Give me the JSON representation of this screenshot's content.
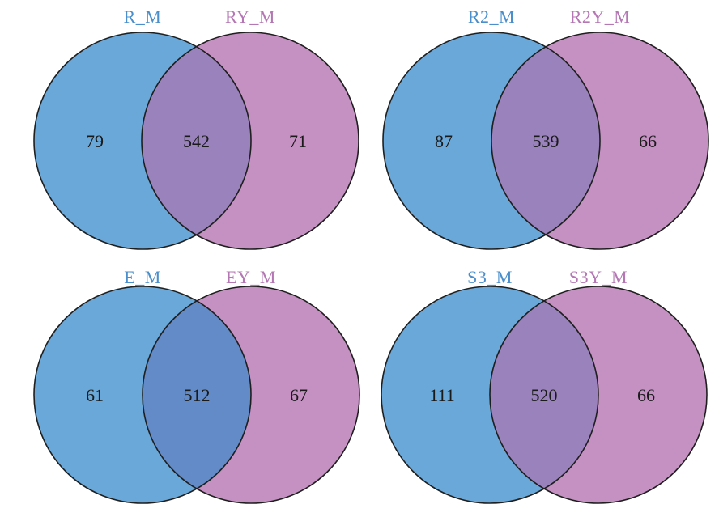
{
  "colors": {
    "left_fill": "#69A8D9",
    "right_fill": "#C591C3",
    "left_label": "#4A8FCB",
    "right_label": "#B477B4"
  },
  "diagrams": [
    {
      "left_label": "R_M",
      "right_label": "RY_M",
      "left_only": "79",
      "overlap": "542",
      "right_only": "71",
      "overlap_color": "#9A83BD"
    },
    {
      "left_label": "R2_M",
      "right_label": "R2Y_M",
      "left_only": "87",
      "overlap": "539",
      "right_only": "66",
      "overlap_color": "#9A83BD"
    },
    {
      "left_label": "E_M",
      "right_label": "EY_M",
      "left_only": "61",
      "overlap": "512",
      "right_only": "67",
      "overlap_color": "#628BC8"
    },
    {
      "left_label": "S3_M",
      "right_label": "S3Y_M",
      "left_only": "111",
      "overlap": "520",
      "right_only": "66",
      "overlap_color": "#9A83BD"
    }
  ]
}
